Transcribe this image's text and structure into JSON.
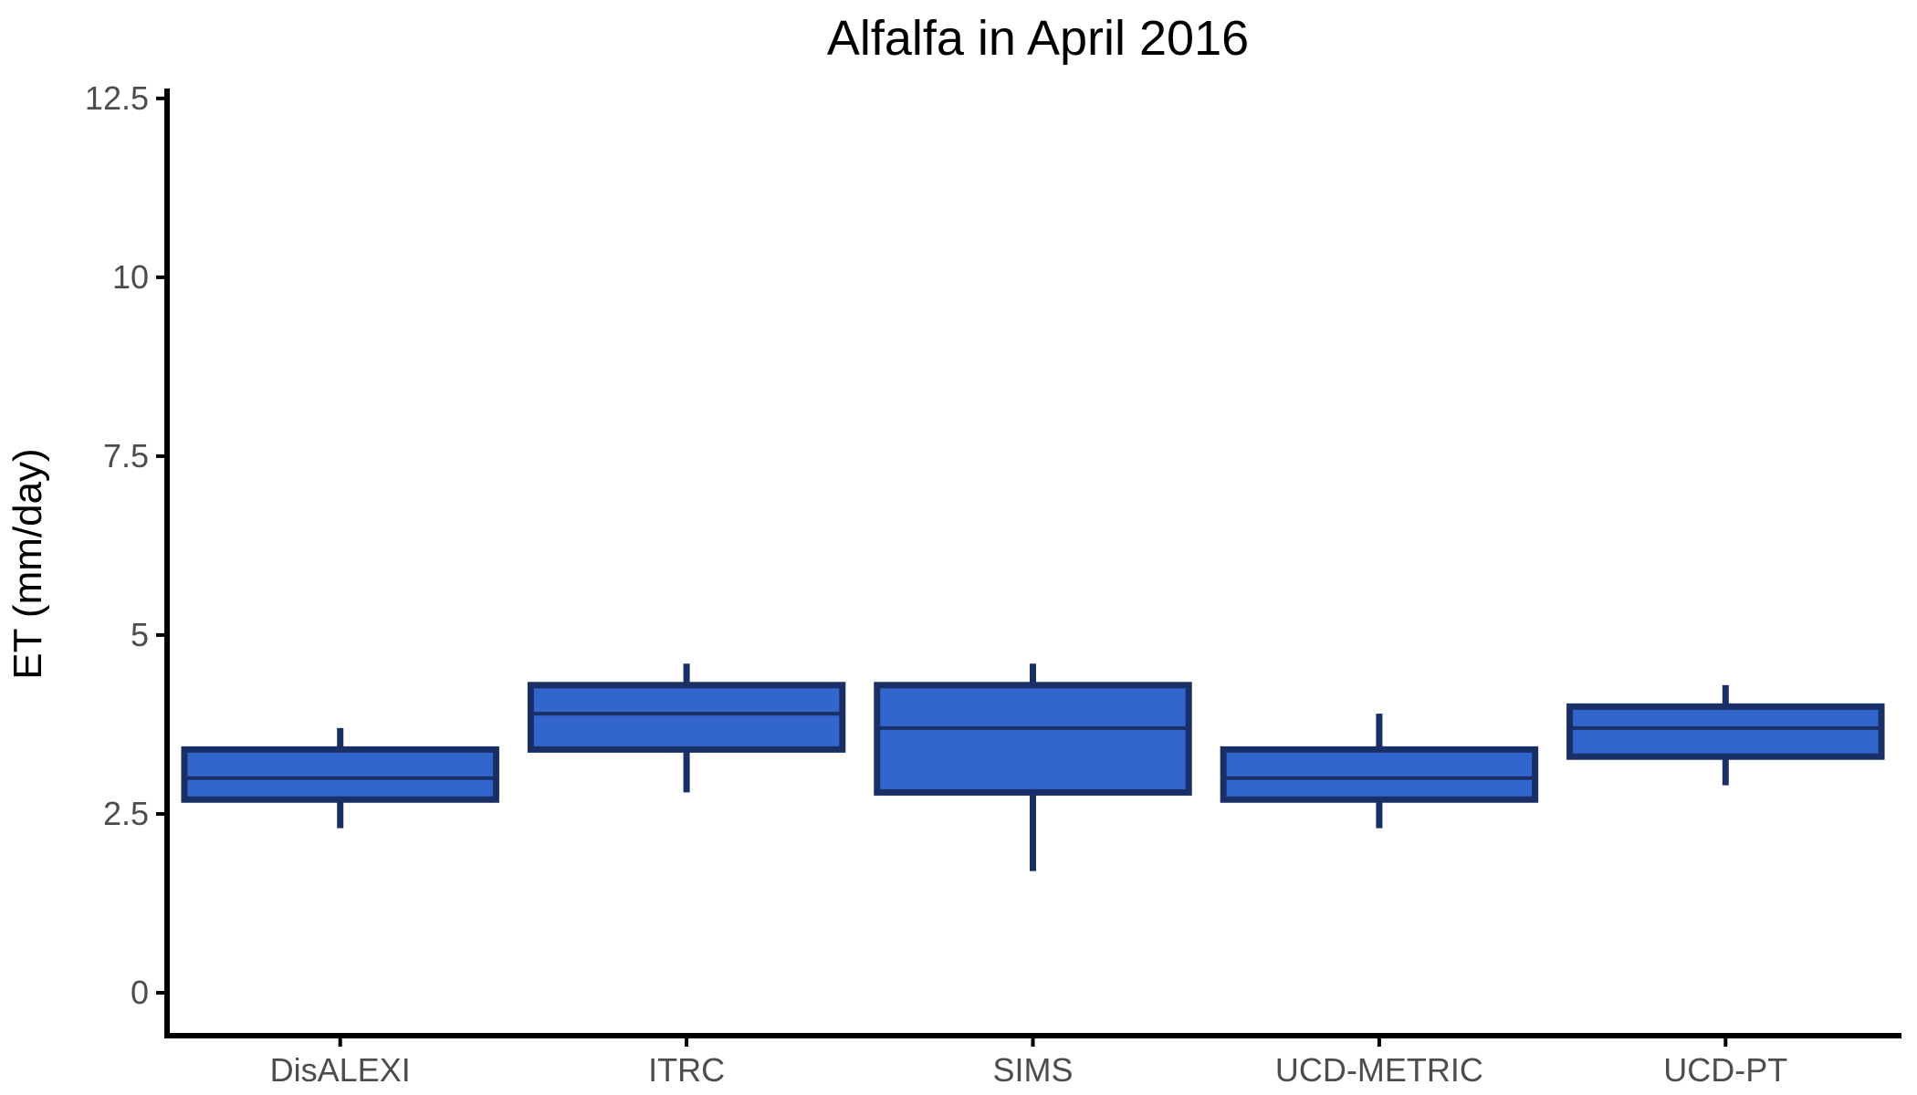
{
  "chart_data": {
    "type": "boxplot",
    "title": "Alfalfa in April 2016",
    "xlabel": "",
    "ylabel": "ET (mm/day)",
    "ylim": [
      -0.6,
      12.6
    ],
    "yticks": [
      0,
      2.5,
      5,
      7.5,
      10,
      12.5
    ],
    "ytick_labels": [
      "0",
      "2.5",
      "5",
      "7.5",
      "10",
      "12.5"
    ],
    "categories": [
      "DisALEXI",
      "ITRC",
      "SIMS",
      "UCD-METRIC",
      "UCD-PT"
    ],
    "boxes": [
      {
        "category": "DisALEXI",
        "whisker_low": 2.3,
        "q1": 2.7,
        "median": 3.0,
        "q3": 3.4,
        "whisker_high": 3.7
      },
      {
        "category": "ITRC",
        "whisker_low": 2.8,
        "q1": 3.4,
        "median": 3.9,
        "q3": 4.3,
        "whisker_high": 4.6
      },
      {
        "category": "SIMS",
        "whisker_low": 1.7,
        "q1": 2.8,
        "median": 3.7,
        "q3": 4.3,
        "whisker_high": 4.6
      },
      {
        "category": "UCD-METRIC",
        "whisker_low": 2.3,
        "q1": 2.7,
        "median": 3.0,
        "q3": 3.4,
        "whisker_high": 3.9
      },
      {
        "category": "UCD-PT",
        "whisker_low": 2.9,
        "q1": 3.3,
        "median": 3.7,
        "q3": 4.0,
        "whisker_high": 4.3
      }
    ],
    "colors": {
      "box_fill": "#3366cc",
      "box_stroke": "#1a2f66",
      "axis": "#000000",
      "tick_text": "#4d4d4d"
    },
    "grid": false,
    "legend": "none"
  }
}
